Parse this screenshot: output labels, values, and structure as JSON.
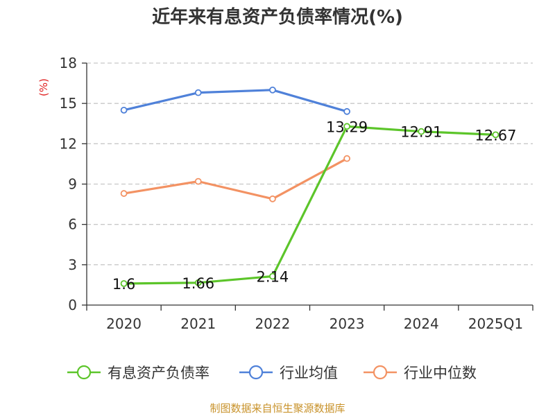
{
  "title": "近年来有息资产负债率情况(%)",
  "unit_label": "(%)",
  "source": "制图数据来自恒生聚源数据库",
  "chart_data": {
    "type": "line",
    "title": "近年来有息资产负债率情况(%)",
    "ylabel": "(%)",
    "categories": [
      "2020",
      "2021",
      "2022",
      "2023",
      "2024",
      "2025Q1"
    ],
    "yticks": [
      0,
      3,
      6,
      9,
      12,
      15,
      18
    ],
    "ylim": [
      0,
      18
    ],
    "grid": true,
    "legend_position": "bottom",
    "series": [
      {
        "name": "有息资产负债率",
        "color": "#5cc52a",
        "values": [
          1.6,
          1.66,
          2.14,
          13.29,
          12.91,
          12.67
        ],
        "labels": [
          "1.6",
          "1.66",
          "2.14",
          "13.29",
          "12.91",
          "12.67"
        ]
      },
      {
        "name": "行业均值",
        "color": "#4f81d9",
        "values": [
          14.5,
          15.8,
          16.0,
          14.4,
          null,
          null
        ]
      },
      {
        "name": "行业中位数",
        "color": "#f39263",
        "values": [
          8.3,
          9.2,
          7.9,
          10.9,
          null,
          null
        ]
      }
    ]
  }
}
